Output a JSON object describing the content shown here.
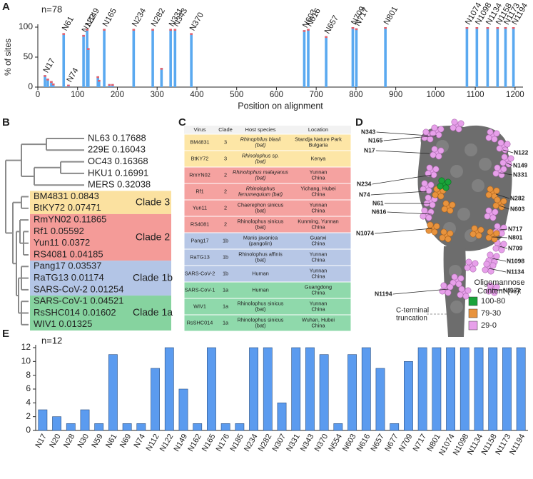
{
  "chart_data": [
    {
      "type": "bar",
      "panel": "A",
      "subtitle": "n=78",
      "y_label": "% of sites",
      "x_label": "Position on alignment",
      "x": [
        18,
        25,
        34,
        39,
        65,
        77,
        115,
        124,
        127,
        151,
        154,
        167,
        180,
        188,
        241,
        289,
        311,
        334,
        345,
        386,
        670,
        680,
        725,
        792,
        801,
        874,
        1079,
        1104,
        1131,
        1156,
        1176,
        1196
      ],
      "values": [
        20,
        14,
        10,
        6,
        90,
        4,
        87,
        97,
        65,
        18,
        12,
        97,
        5,
        5,
        97,
        97,
        32,
        97,
        97,
        90,
        95,
        97,
        85,
        100,
        98,
        100,
        100,
        100,
        100,
        100,
        100,
        100
      ],
      "point_labels": [
        "N17",
        null,
        null,
        null,
        "N61",
        "N74",
        "N122",
        "N149",
        null,
        null,
        null,
        "N165",
        null,
        null,
        "N234",
        "N282",
        null,
        "N331",
        "N343",
        "N370",
        "N603",
        "N616",
        "N657",
        "N709",
        "N717",
        "N801",
        "N1074",
        "N1098",
        "N1134",
        "N1158",
        "N1173",
        "N1194"
      ],
      "point_label_colors": [
        null,
        null,
        null,
        null,
        null,
        null,
        null,
        null,
        null,
        null,
        null,
        null,
        null,
        null,
        null,
        null,
        null,
        null,
        null,
        "#e8191c",
        null,
        null,
        null,
        null,
        null,
        null,
        null,
        null,
        null,
        null,
        null,
        null
      ],
      "color": "#5aa9f0",
      "tip_color": "#e8606a",
      "xlim": [
        0,
        1220
      ],
      "xticks": [
        0,
        100,
        200,
        300,
        400,
        500,
        600,
        700,
        800,
        900,
        1000,
        1100,
        1200
      ],
      "ylim": [
        0,
        100
      ],
      "yticks": [
        0,
        50,
        100
      ]
    },
    {
      "type": "bar",
      "panel": "E",
      "subtitle": "n=12",
      "categories": [
        "N17",
        "N20",
        "N28",
        "N30",
        "N59",
        "N61",
        "N69",
        "N74",
        "N112",
        "N122",
        "N149",
        "N162",
        "N165",
        "N176",
        "N185",
        "N234",
        "N282",
        "N307",
        "N331",
        "N343",
        "N370",
        "N554",
        "N603",
        "N616",
        "N657",
        "N677",
        "N709",
        "N717",
        "N801",
        "N1074",
        "N1098",
        "N1134",
        "N1158",
        "N1173",
        "N1194"
      ],
      "values": [
        3,
        2,
        1,
        3,
        1,
        11,
        1,
        1,
        9,
        12,
        6,
        1,
        12,
        1,
        1,
        12,
        12,
        4,
        12,
        12,
        11,
        1,
        11,
        12,
        9,
        1,
        10,
        12,
        12,
        12,
        12,
        12,
        12,
        12,
        12
      ],
      "color": "#5b9bef",
      "ylim": [
        0,
        12
      ],
      "yticks": [
        0,
        2,
        4,
        6,
        8,
        10,
        12
      ]
    }
  ],
  "tree": {
    "panel": "B",
    "outgroup": [
      "NL63 0.17688",
      "229E 0.16043",
      "OC43 0.16368",
      "HKU1 0.16991",
      "MERS 0.32038"
    ],
    "clades": [
      {
        "name": "Clade 3",
        "color": "#fbe1a0",
        "text_color": "#f4c443",
        "leaves": [
          "BM4831 0.0843",
          "BtKY72 0.07471"
        ]
      },
      {
        "name": "Clade 2",
        "color": "#f49b98",
        "text_color": "#f6a5a5",
        "leaves": [
          "RmYN02 0.11865",
          "Rf1 0.05592",
          "Yun11 0.0372",
          "RS4081 0.04185"
        ]
      },
      {
        "name": "Clade 1b",
        "color": "#b3c5e6",
        "text_color": "#a9c0ea",
        "leaves": [
          "Pang17 0.03537",
          "RaTG13 0.01174",
          "SARS-CoV-2 0.01254"
        ]
      },
      {
        "name": "Clade 1a",
        "color": "#86d39f",
        "text_color": "#7fd6a2",
        "leaves": [
          "SARS-CoV-1 0.04521",
          "RsSHC014 0.01602",
          "WIV1 0.01325"
        ]
      }
    ]
  },
  "table": {
    "panel": "C",
    "header": [
      "Virus",
      "Clade",
      "Host species",
      "Location"
    ],
    "rows": [
      [
        "BM4831",
        "3",
        "Rhinophilus blasii\n(bat)",
        "Standja Nature Park\nBulgaria"
      ],
      [
        "BtKY72",
        "3",
        "Rhinolophus sp.\n(bat)",
        "Kenya"
      ],
      [
        "RmYN02",
        "2",
        "Rhinolophus malayanus\n(bat)",
        "Yunnan\nChina"
      ],
      [
        "Rf1",
        "2",
        "Rhinolophus\nferrumequium (bat)",
        "Yichang, Hubei\nChina"
      ],
      [
        "Yun11",
        "2",
        "Chaerephon sinicus\n(bat)",
        "Yunnan\nChina"
      ],
      [
        "RS4081",
        "2",
        "Rhinolophus sinicus\n(bat)",
        "Kunming, Yunnan\nChina"
      ],
      [
        "Pang17",
        "1b",
        "Manis javanica\n(pangolin)",
        "Guanxi\nChina"
      ],
      [
        "RaTG13",
        "1b",
        "Rhinolophus affinis\n(bat)",
        "Yunnan\nChina"
      ],
      [
        "SARS-CoV-2",
        "1b",
        "Human",
        "Yunnan\nChina"
      ],
      [
        "SARS-CoV-1",
        "1a",
        "Human",
        "Guangdong\nChina"
      ],
      [
        "WIV1",
        "1a",
        "Rhinolophus sinicus\n(bat)",
        "Yunnan\nChina"
      ],
      [
        "RsSHC014",
        "1a",
        "Rhinolophus sinicus\n(bat)",
        "Wuhan, Hubei\nChina"
      ]
    ],
    "clade_colors": {
      "3": "#fde6a6",
      "2": "#f5a2a0",
      "1b": "#b7c7e6",
      "1a": "#8fd9ab"
    },
    "italic_host_rows": [
      0,
      1,
      2,
      3
    ]
  },
  "structure": {
    "panel": "D",
    "labels": [
      "N343",
      "N165",
      "N17",
      "N234",
      "N74",
      "N61",
      "N616",
      "N1074",
      "N1194",
      "N122",
      "N149",
      "N331",
      "N282",
      "N603",
      "N717",
      "N801",
      "N709",
      "N1098",
      "N1134",
      "N1173"
    ],
    "legend_title": "Oligomannose\nContent (%):",
    "legend": [
      {
        "label": "100-80",
        "color": "#1aa33a"
      },
      {
        "label": "79-30",
        "color": "#e8933d"
      },
      {
        "label": "29-0",
        "color": "#e7a0ea"
      }
    ],
    "truncation_label": "C-terminal\ntruncation"
  }
}
